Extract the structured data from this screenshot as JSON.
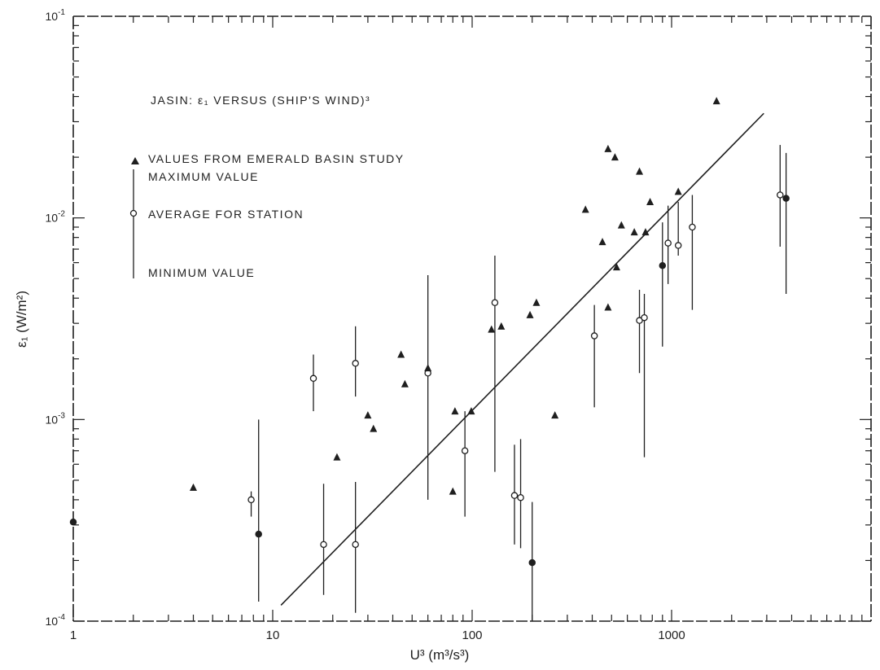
{
  "chart_data": {
    "type": "scatter",
    "title": "JASIN: ε₁ VERSUS (SHIP'S WIND)³",
    "xlabel": "U³ (m³/s³)",
    "ylabel": "ε₁ (W/m²)",
    "xscale": "log",
    "yscale": "log",
    "xlim": [
      1,
      10000
    ],
    "ylim": [
      0.0001,
      0.1
    ],
    "x_tick_labels": [
      {
        "value": 1,
        "label": "1"
      },
      {
        "value": 10,
        "label": "10"
      },
      {
        "value": 100,
        "label": "100"
      },
      {
        "value": 1000,
        "label": "1000"
      }
    ],
    "y_tick_labels": [
      {
        "value": 0.0001,
        "base": "10",
        "exp": "-4"
      },
      {
        "value": 0.001,
        "base": "10",
        "exp": "-3"
      },
      {
        "value": 0.01,
        "base": "10",
        "exp": "-2"
      },
      {
        "value": 0.1,
        "base": "10",
        "exp": "-1"
      }
    ],
    "legend": {
      "placement": "top-left",
      "entries": [
        {
          "marker": "triangle",
          "label": "VALUES FROM EMERALD BASIN STUDY"
        },
        {
          "marker": "bar-max",
          "label": "MAXIMUM VALUE"
        },
        {
          "marker": "circle",
          "label": "AVERAGE FOR STATION"
        },
        {
          "marker": "bar-min",
          "label": "MINIMUM VALUE"
        }
      ]
    },
    "series": [
      {
        "marker": "triangle",
        "points": [
          {
            "x": 4,
            "y": 0.00046
          },
          {
            "x": 21,
            "y": 0.00065
          },
          {
            "x": 30,
            "y": 0.00105
          },
          {
            "x": 32,
            "y": 0.0009
          },
          {
            "x": 44,
            "y": 0.0021
          },
          {
            "x": 46,
            "y": 0.0015
          },
          {
            "x": 60,
            "y": 0.0018
          },
          {
            "x": 82,
            "y": 0.0011
          },
          {
            "x": 99,
            "y": 0.0011
          },
          {
            "x": 80,
            "y": 0.00044
          },
          {
            "x": 125,
            "y": 0.0028
          },
          {
            "x": 140,
            "y": 0.0029
          },
          {
            "x": 195,
            "y": 0.0033
          },
          {
            "x": 210,
            "y": 0.0038
          },
          {
            "x": 260,
            "y": 0.00105
          },
          {
            "x": 370,
            "y": 0.011
          },
          {
            "x": 450,
            "y": 0.0076
          },
          {
            "x": 480,
            "y": 0.0036
          },
          {
            "x": 480,
            "y": 0.022
          },
          {
            "x": 520,
            "y": 0.02
          },
          {
            "x": 530,
            "y": 0.0057
          },
          {
            "x": 560,
            "y": 0.0092
          },
          {
            "x": 650,
            "y": 0.0085
          },
          {
            "x": 690,
            "y": 0.017
          },
          {
            "x": 740,
            "y": 0.0085
          },
          {
            "x": 780,
            "y": 0.012
          },
          {
            "x": 1080,
            "y": 0.0135
          },
          {
            "x": 1680,
            "y": 0.038
          }
        ]
      },
      {
        "marker": "range",
        "points": [
          {
            "x": 1,
            "avg": 0.00031,
            "filled": true
          },
          {
            "x": 7.8,
            "min": 0.00033,
            "max": 0.00044,
            "avg": 0.0004
          },
          {
            "x": 8.5,
            "min": 0.000125,
            "max": 0.001,
            "avg": 0.00027,
            "filled": true
          },
          {
            "x": 16,
            "min": 0.0011,
            "max": 0.0021,
            "avg": 0.0016
          },
          {
            "x": 18,
            "min": 0.000135,
            "max": 0.00048,
            "avg": 0.00024
          },
          {
            "x": 26,
            "min": 0.00011,
            "max": 0.00049,
            "avg": 0.00024
          },
          {
            "x": 26,
            "min": 0.0013,
            "max": 0.0029,
            "avg": 0.0019
          },
          {
            "x": 60,
            "min": 0.0004,
            "max": 0.0052,
            "avg": 0.0017
          },
          {
            "x": 92,
            "min": 0.00033,
            "max": 0.0011,
            "avg": 0.0007
          },
          {
            "x": 130,
            "min": 0.00055,
            "max": 0.0065,
            "avg": 0.0038
          },
          {
            "x": 163,
            "min": 0.00024,
            "max": 0.00075,
            "avg": 0.00042
          },
          {
            "x": 175,
            "min": 0.00023,
            "max": 0.0008,
            "avg": 0.00041
          },
          {
            "x": 200,
            "min": 0.0001,
            "max": 0.00039,
            "avg": 0.000195,
            "filled": true
          },
          {
            "x": 410,
            "min": 0.00115,
            "max": 0.0037,
            "avg": 0.0026
          },
          {
            "x": 690,
            "min": 0.0017,
            "max": 0.0044,
            "avg": 0.0031
          },
          {
            "x": 730,
            "min": 0.00065,
            "max": 0.0042,
            "avg": 0.0032
          },
          {
            "x": 900,
            "min": 0.0023,
            "max": 0.0095,
            "avg": 0.0058,
            "filled": true
          },
          {
            "x": 960,
            "min": 0.0047,
            "max": 0.0115,
            "avg": 0.0075
          },
          {
            "x": 1080,
            "min": 0.0065,
            "max": 0.012,
            "avg": 0.0073
          },
          {
            "x": 1270,
            "min": 0.0035,
            "max": 0.013,
            "avg": 0.009
          },
          {
            "x": 3500,
            "min": 0.0072,
            "max": 0.023,
            "avg": 0.013
          },
          {
            "x": 3750,
            "min": 0.0042,
            "max": 0.021,
            "avg": 0.0125,
            "filled": true
          }
        ]
      },
      {
        "marker": "line",
        "points": [
          {
            "x": 11,
            "y": 0.00012
          },
          {
            "x": 2900,
            "y": 0.033
          }
        ]
      }
    ]
  }
}
